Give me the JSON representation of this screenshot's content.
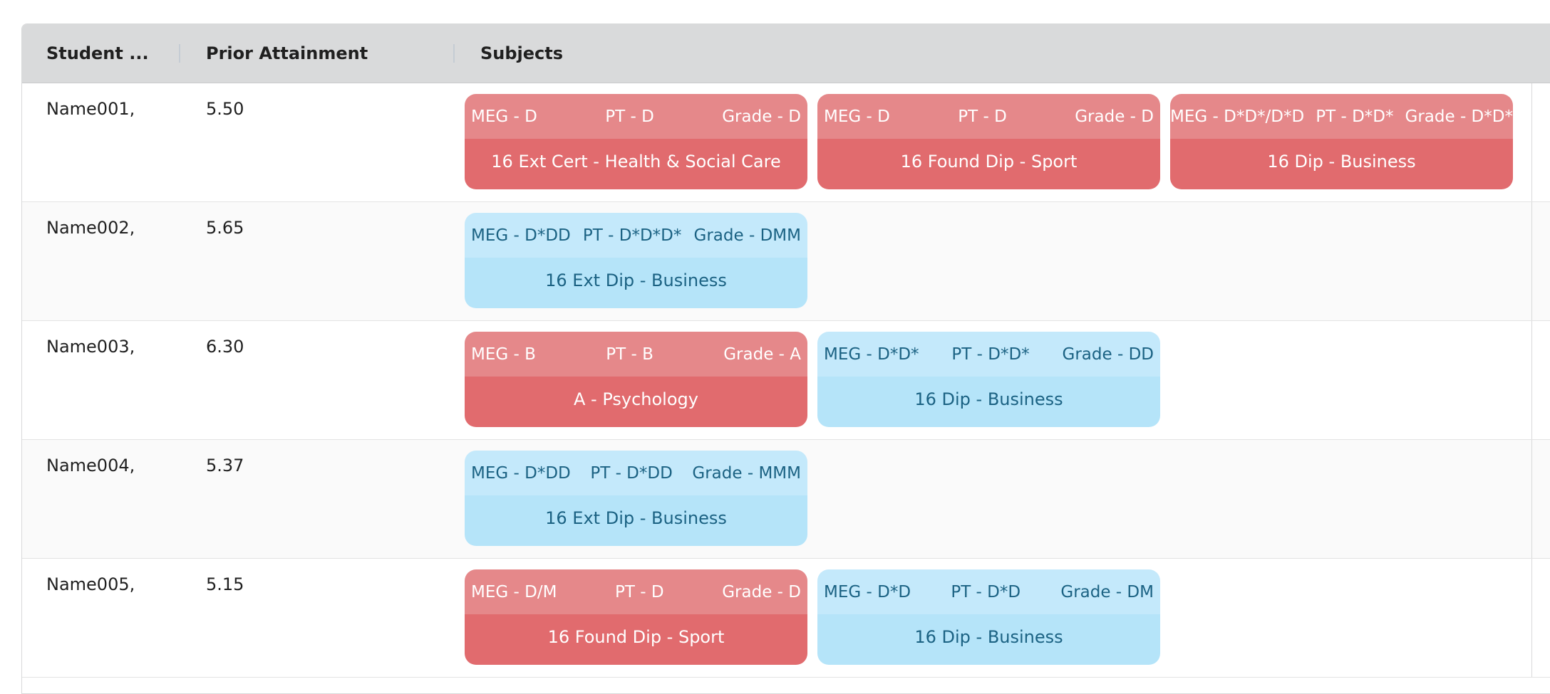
{
  "header": {
    "col_student": "Student ...",
    "col_prior": "Prior Attainment",
    "col_subjects": "Subjects"
  },
  "rows": [
    {
      "name": "Name001,",
      "prior": "5.50",
      "subjects": [
        {
          "meg": "MEG - D",
          "pt": "PT - D",
          "grade": "Grade - D",
          "course": "16 Ext Cert - Health & Social Care",
          "status": "red"
        },
        {
          "meg": "MEG - D",
          "pt": "PT - D",
          "grade": "Grade - D",
          "course": "16 Found Dip - Sport",
          "status": "red"
        },
        {
          "meg": "MEG - D*D*/D*D",
          "pt": "PT - D*D*",
          "grade": "Grade - D*D*",
          "course": "16 Dip - Business",
          "status": "red"
        }
      ]
    },
    {
      "name": "Name002,",
      "prior": "5.65",
      "subjects": [
        {
          "meg": "MEG - D*DD",
          "pt": "PT - D*D*D*",
          "grade": "Grade - DMM",
          "course": "16 Ext Dip - Business",
          "status": "blue"
        }
      ]
    },
    {
      "name": "Name003,",
      "prior": "6.30",
      "subjects": [
        {
          "meg": "MEG - B",
          "pt": "PT - B",
          "grade": "Grade - A",
          "course": "A - Psychology",
          "status": "red"
        },
        {
          "meg": "MEG - D*D*",
          "pt": "PT - D*D*",
          "grade": "Grade - DD",
          "course": "16 Dip - Business",
          "status": "blue"
        }
      ]
    },
    {
      "name": "Name004,",
      "prior": "5.37",
      "subjects": [
        {
          "meg": "MEG - D*DD",
          "pt": "PT - D*DD",
          "grade": "Grade - MMM",
          "course": "16 Ext Dip - Business",
          "status": "blue"
        }
      ]
    },
    {
      "name": "Name005,",
      "prior": "5.15",
      "subjects": [
        {
          "meg": "MEG - D/M",
          "pt": "PT - D",
          "grade": "Grade - D",
          "course": "16 Found Dip - Sport",
          "status": "red"
        },
        {
          "meg": "MEG - D*D",
          "pt": "PT - D*D",
          "grade": "Grade - DM",
          "course": "16 Dip - Business",
          "status": "blue"
        }
      ]
    }
  ],
  "colors": {
    "red_top": "#e5888a",
    "red_bottom": "#e16b6e",
    "blue_top": "#c4e9fb",
    "blue_bottom": "#b5e4f9",
    "header_bg": "#d9dadb"
  }
}
